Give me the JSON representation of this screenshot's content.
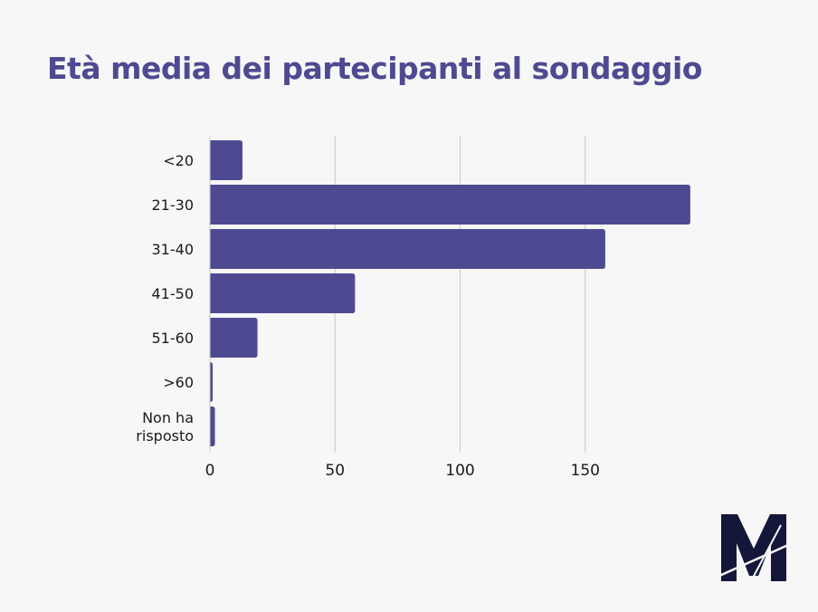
{
  "title": "Età media dei partecipanti al sondaggio",
  "chart_data": {
    "type": "bar",
    "orientation": "horizontal",
    "title": "Età media dei partecipanti al sondaggio",
    "categories": [
      "<20",
      "21-30",
      "31-40",
      "41-50",
      "51-60",
      ">60",
      [
        "Non ha",
        "risposto"
      ]
    ],
    "values": [
      13,
      192,
      158,
      58,
      19,
      1,
      2
    ],
    "xlim": [
      0,
      200
    ],
    "xticks": [
      0,
      50,
      100,
      150
    ],
    "xtick_labels": [
      "0",
      "50",
      "100",
      "150"
    ],
    "grid": "vertical",
    "bar_color": "#4e4a91",
    "xlabel": "",
    "ylabel": ""
  },
  "logo": {
    "icon": "m-logo",
    "color": "#15173a"
  }
}
